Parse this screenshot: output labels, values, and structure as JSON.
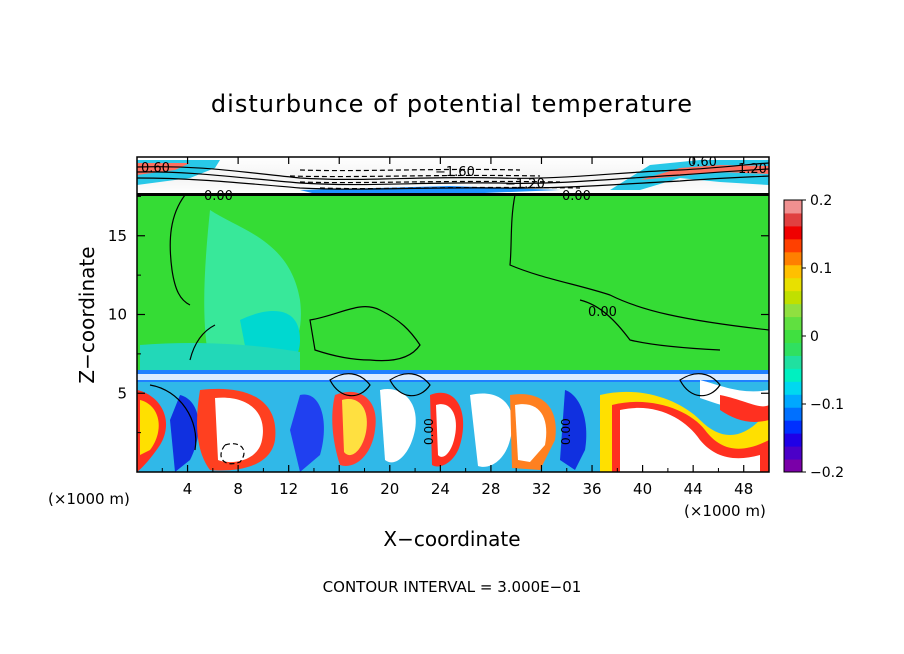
{
  "chart_data": {
    "type": "heatmap",
    "title": "disturbunce of potential temperature",
    "xlabel": "X−coordinate",
    "ylabel": "Z−coordinate",
    "x_unit": "(×1000 m)",
    "y_unit": "(×1000 m)",
    "xlim": [
      0,
      50
    ],
    "ylim": [
      0,
      20
    ],
    "x_ticks": [
      "4",
      "8",
      "12",
      "16",
      "20",
      "24",
      "28",
      "32",
      "36",
      "40",
      "44",
      "48"
    ],
    "x_tick_values": [
      4,
      8,
      12,
      16,
      20,
      24,
      28,
      32,
      36,
      40,
      44,
      48
    ],
    "y_ticks": [
      "5",
      "10",
      "15"
    ],
    "y_tick_values": [
      5,
      10,
      15
    ],
    "colorbar": {
      "min": -0.2,
      "max": 0.2,
      "labels": [
        "0.2",
        "0.1",
        "0",
        "−0.1",
        "−0.2"
      ],
      "label_values": [
        0.2,
        0.1,
        0,
        -0.1,
        -0.2
      ],
      "colors": [
        "#7a00a8",
        "#4b00c8",
        "#1f00e6",
        "#0030ff",
        "#0070ff",
        "#00a8ff",
        "#00d8f0",
        "#00f0c0",
        "#20e0a0",
        "#30e060",
        "#40e040",
        "#60e040",
        "#90e040",
        "#c0e000",
        "#e8e000",
        "#ffc000",
        "#ff8000",
        "#ff4000",
        "#f00000",
        "#e04040",
        "#f09090"
      ]
    },
    "contour_interval_label": "CONTOUR INTERVAL = 3.000E−01",
    "contour_labels": [
      "0.60",
      "0.00",
      "−1.60",
      "−1.20",
      "0.00",
      "0.60",
      "1.20",
      "0.00",
      "0.00",
      "0.00"
    ]
  }
}
